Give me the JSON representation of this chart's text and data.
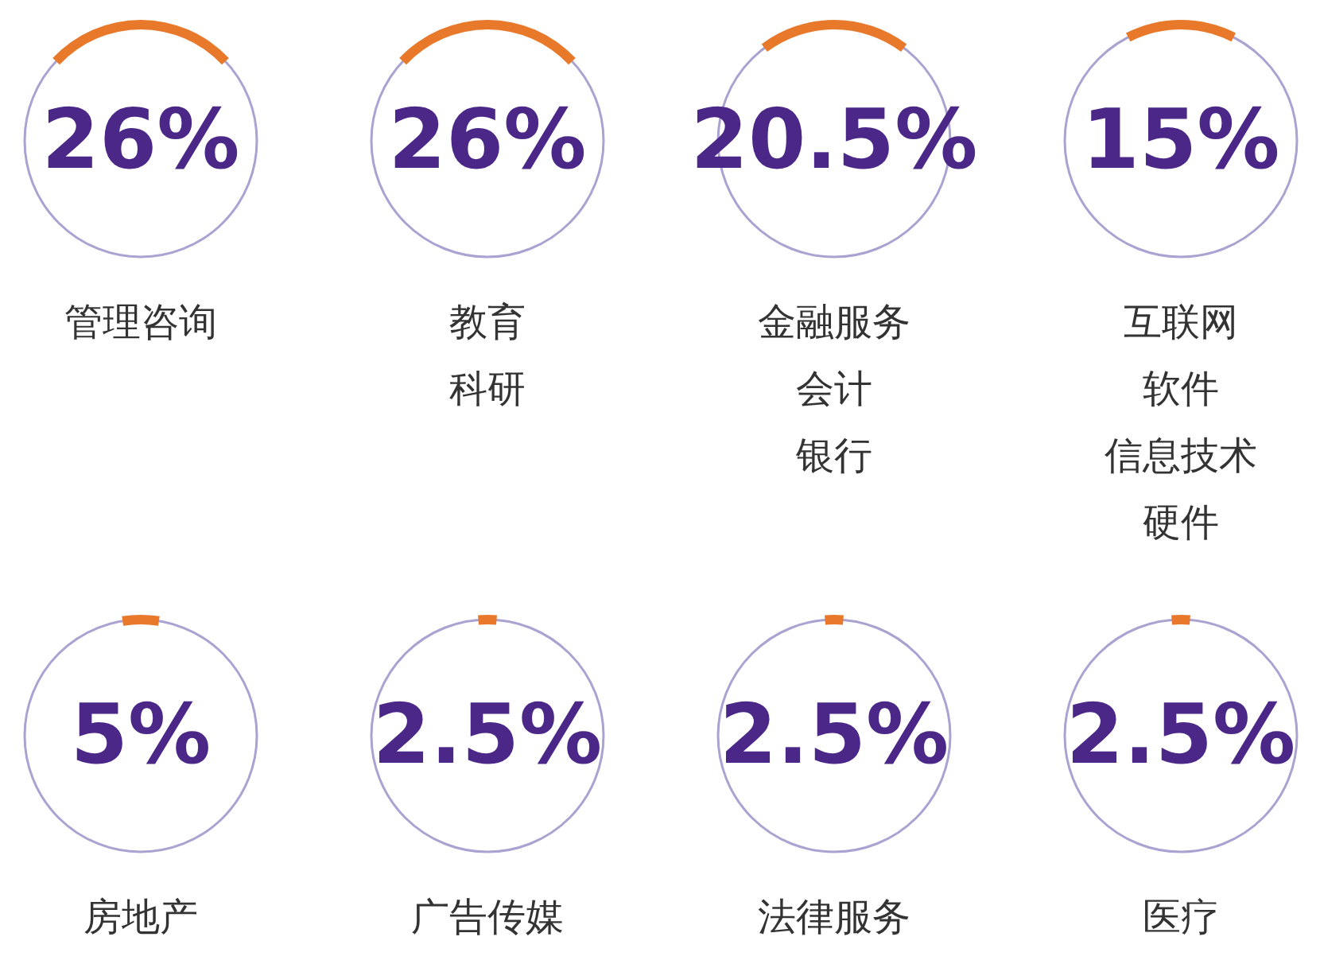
{
  "chart_data": {
    "type": "other",
    "categories": [
      "管理咨询",
      "教育科研",
      "金融服务会计银行",
      "互联网软件信息技术硬件",
      "房地产",
      "广告传媒",
      "法律服务",
      "医疗"
    ],
    "values": [
      26,
      26,
      20.5,
      15,
      5,
      2.5,
      2.5,
      2.5
    ],
    "value_labels": [
      "26%",
      "26%",
      "20.5%",
      "15%",
      "5%",
      "2.5%",
      "2.5%",
      "2.5%"
    ],
    "color": "#e8782a"
  }
}
